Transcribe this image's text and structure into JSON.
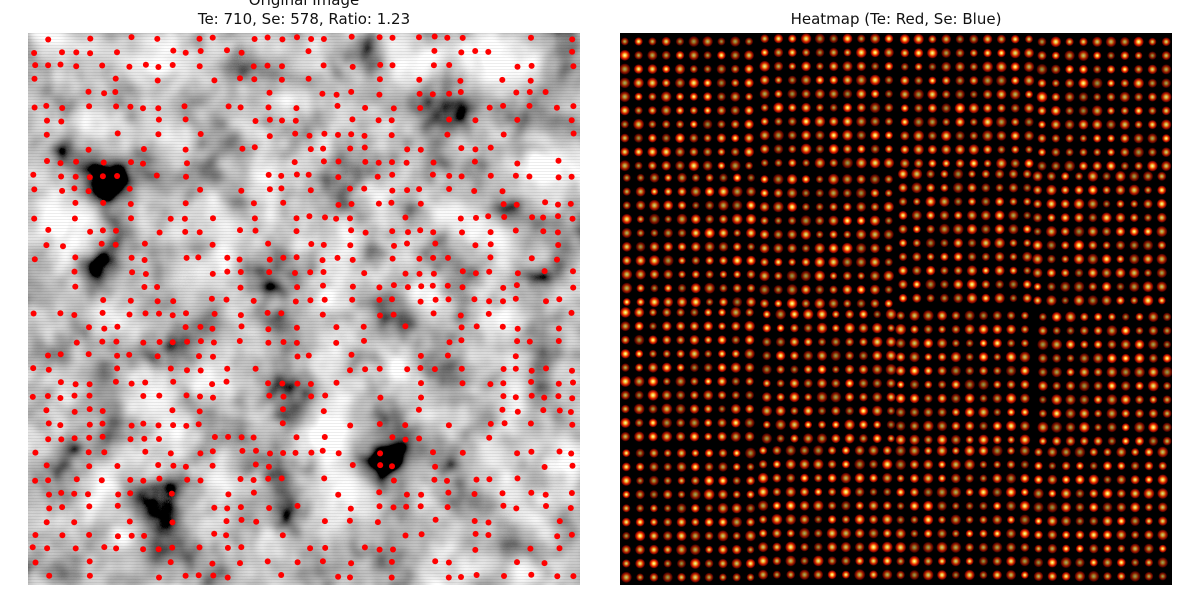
{
  "left_panel": {
    "title": "Original Image",
    "subtitle": "Te: 710, Se: 578, Ratio: 1.23",
    "te_count": 710,
    "se_count": 578,
    "ratio": 1.23,
    "marker_color": "#ff0000"
  },
  "right_panel": {
    "title": "Heatmap (Te: Red, Se: Blue)",
    "colormap": "hot"
  }
}
